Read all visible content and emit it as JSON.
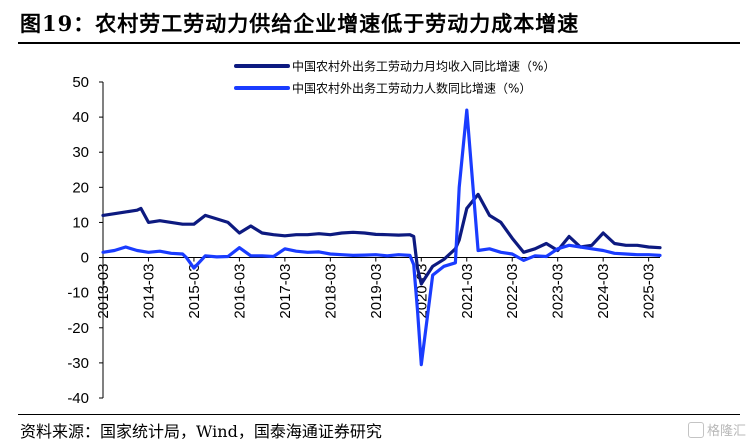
{
  "figure": {
    "title": "图19：农村劳工劳动力供给企业增速低于劳动力成本增速",
    "source": "资料来源：国家统计局，Wind，国泰海通证券研究",
    "watermark": "格隆汇"
  },
  "chart_data": {
    "type": "line",
    "title": "",
    "xlabel": "",
    "ylabel": "",
    "ylim": [
      -40,
      50
    ],
    "yticks": [
      -40,
      -30,
      -20,
      -10,
      0,
      10,
      20,
      30,
      40,
      50
    ],
    "xticks": [
      "2013-03",
      "2014-03",
      "2015-03",
      "2016-03",
      "2017-03",
      "2018-03",
      "2019-03",
      "2020-03",
      "2021-03",
      "2022-03",
      "2023-03",
      "2024-03",
      "2025-03"
    ],
    "x_range": [
      "2013-03",
      "2025-06"
    ],
    "grid": false,
    "legend_position": "top",
    "series": [
      {
        "name": "中国农村外出务工劳动力月均收入同比增速（%）",
        "color": "#0d1a80",
        "points": [
          [
            "2013-03",
            12
          ],
          [
            "2013-06",
            12.5
          ],
          [
            "2013-09",
            13
          ],
          [
            "2013-12",
            13.5
          ],
          [
            "2014-01",
            14
          ],
          [
            "2014-03",
            10
          ],
          [
            "2014-06",
            10.5
          ],
          [
            "2014-09",
            10
          ],
          [
            "2014-12",
            9.5
          ],
          [
            "2015-03",
            9.5
          ],
          [
            "2015-06",
            12
          ],
          [
            "2015-09",
            11
          ],
          [
            "2015-12",
            10
          ],
          [
            "2016-03",
            7
          ],
          [
            "2016-06",
            9
          ],
          [
            "2016-09",
            7
          ],
          [
            "2016-12",
            6.5
          ],
          [
            "2017-03",
            6.2
          ],
          [
            "2017-06",
            6.5
          ],
          [
            "2017-09",
            6.5
          ],
          [
            "2017-12",
            6.8
          ],
          [
            "2018-03",
            6.5
          ],
          [
            "2018-06",
            7
          ],
          [
            "2018-09",
            7.2
          ],
          [
            "2018-12",
            7
          ],
          [
            "2019-03",
            6.6
          ],
          [
            "2019-06",
            6.5
          ],
          [
            "2019-09",
            6.4
          ],
          [
            "2019-12",
            6.5
          ],
          [
            "2020-01",
            6
          ],
          [
            "2020-02",
            -3
          ],
          [
            "2020-03",
            -7.5
          ],
          [
            "2020-06",
            -2.5
          ],
          [
            "2020-09",
            -0.5
          ],
          [
            "2020-12",
            2.5
          ],
          [
            "2021-01",
            5
          ],
          [
            "2021-03",
            14
          ],
          [
            "2021-06",
            18
          ],
          [
            "2021-09",
            12
          ],
          [
            "2021-12",
            10
          ],
          [
            "2022-03",
            5.5
          ],
          [
            "2022-06",
            1.5
          ],
          [
            "2022-09",
            2.5
          ],
          [
            "2022-12",
            4
          ],
          [
            "2023-03",
            2
          ],
          [
            "2023-06",
            6
          ],
          [
            "2023-09",
            3
          ],
          [
            "2023-12",
            3.5
          ],
          [
            "2024-03",
            7
          ],
          [
            "2024-06",
            4
          ],
          [
            "2024-09",
            3.5
          ],
          [
            "2024-12",
            3.5
          ],
          [
            "2025-03",
            3
          ],
          [
            "2025-06",
            2.8
          ]
        ]
      },
      {
        "name": "中国农村外出务工劳动力人数同比增速（%）",
        "color": "#1a3cff",
        "points": [
          [
            "2013-03",
            1.5
          ],
          [
            "2013-06",
            2
          ],
          [
            "2013-09",
            3
          ],
          [
            "2013-12",
            2
          ],
          [
            "2014-03",
            1.5
          ],
          [
            "2014-06",
            1.8
          ],
          [
            "2014-09",
            1.2
          ],
          [
            "2014-12",
            1
          ],
          [
            "2015-01",
            0
          ],
          [
            "2015-03",
            -3
          ],
          [
            "2015-06",
            0.5
          ],
          [
            "2015-09",
            0.2
          ],
          [
            "2015-12",
            0.3
          ],
          [
            "2016-03",
            2.8
          ],
          [
            "2016-06",
            0.5
          ],
          [
            "2016-09",
            0.5
          ],
          [
            "2016-12",
            0.3
          ],
          [
            "2017-03",
            2.5
          ],
          [
            "2017-06",
            1.8
          ],
          [
            "2017-09",
            1.5
          ],
          [
            "2017-12",
            1.6
          ],
          [
            "2018-03",
            1
          ],
          [
            "2018-06",
            0.8
          ],
          [
            "2018-09",
            0.6
          ],
          [
            "2018-12",
            0.7
          ],
          [
            "2019-03",
            0.8
          ],
          [
            "2019-06",
            0.5
          ],
          [
            "2019-09",
            0.8
          ],
          [
            "2019-12",
            0.6
          ],
          [
            "2020-01",
            -2
          ],
          [
            "2020-02",
            -15
          ],
          [
            "2020-03",
            -30.5
          ],
          [
            "2020-06",
            -5
          ],
          [
            "2020-09",
            -2.5
          ],
          [
            "2020-12",
            -1.5
          ],
          [
            "2021-01",
            20
          ],
          [
            "2021-03",
            42
          ],
          [
            "2021-06",
            2
          ],
          [
            "2021-09",
            2.5
          ],
          [
            "2021-12",
            1.5
          ],
          [
            "2022-03",
            1
          ],
          [
            "2022-06",
            -0.8
          ],
          [
            "2022-09",
            0.5
          ],
          [
            "2022-12",
            0.3
          ],
          [
            "2023-03",
            2.5
          ],
          [
            "2023-06",
            3.5
          ],
          [
            "2023-09",
            3
          ],
          [
            "2023-12",
            2.5
          ],
          [
            "2024-03",
            2
          ],
          [
            "2024-06",
            1.2
          ],
          [
            "2024-09",
            1
          ],
          [
            "2024-12",
            0.8
          ],
          [
            "2025-03",
            0.8
          ],
          [
            "2025-06",
            0.6
          ]
        ]
      }
    ]
  }
}
